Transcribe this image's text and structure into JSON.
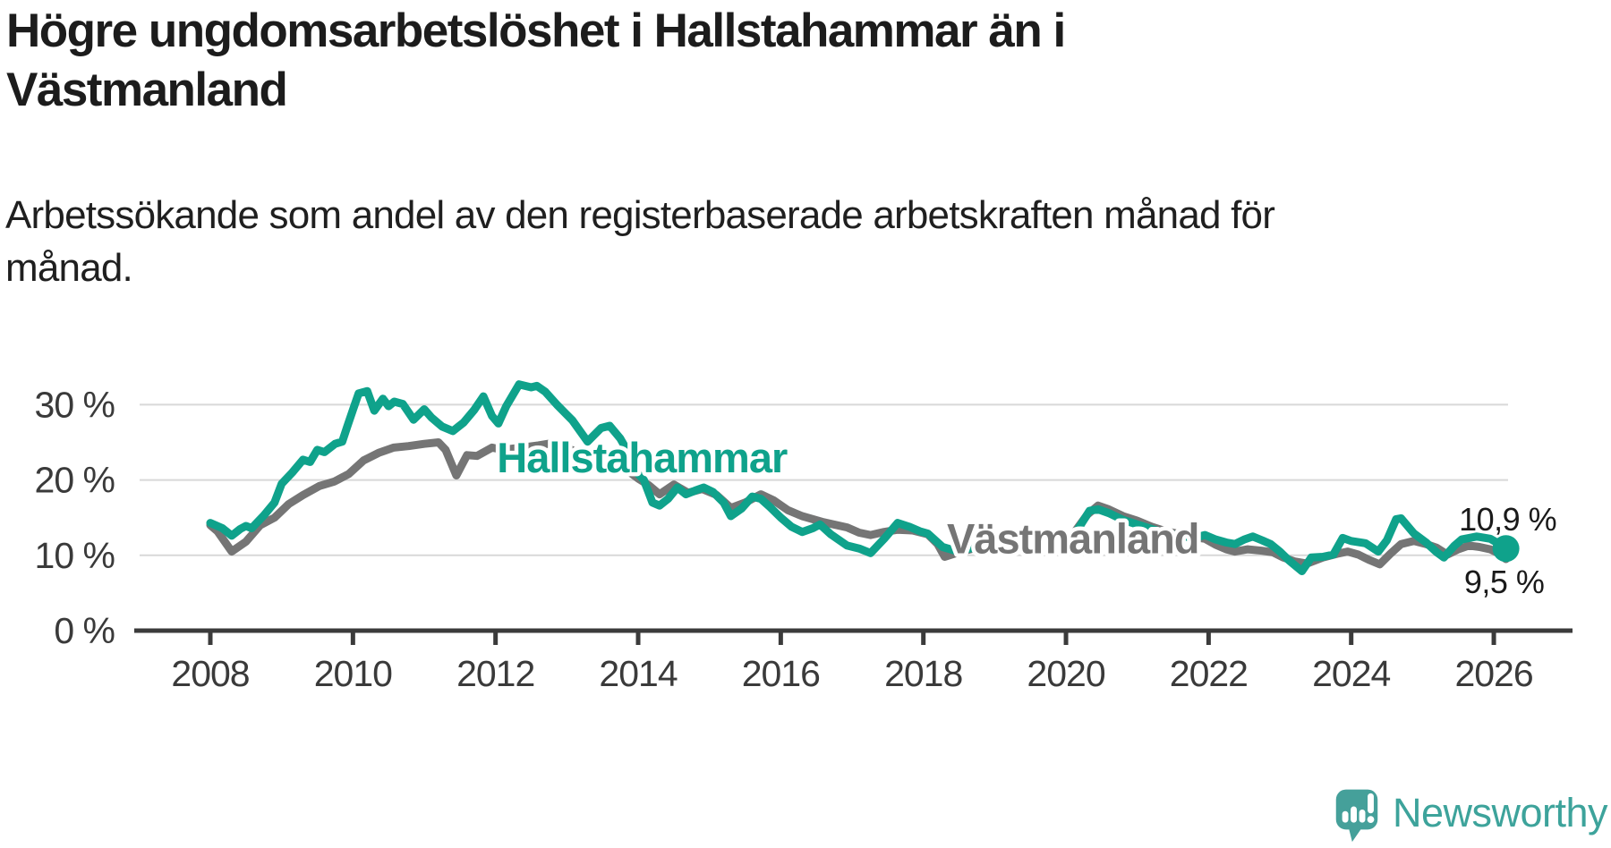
{
  "header": {
    "title": "Högre ungdomsarbetslöshet i Hallstahammar än i Västmanland",
    "subtitle": "Arbetssökande som andel av den registerbaserade arbetskraften månad för månad."
  },
  "branding": {
    "logo_text": "Newsworthy",
    "logo_icon": "newsworthy-speech-bubble-bar-chart-icon",
    "logo_color": "#45a09a"
  },
  "chart_data": {
    "type": "line",
    "unit": "%",
    "x_axis": {
      "min": 2008,
      "max": 2026.17,
      "ticks": [
        2008,
        2010,
        2012,
        2014,
        2016,
        2018,
        2020,
        2022,
        2024,
        2026
      ]
    },
    "y_axis": {
      "min": 0,
      "max": 34,
      "ticks": [
        0,
        10,
        20,
        30
      ],
      "tick_suffix": " %",
      "grid": true
    },
    "legend_position": "inline-labels",
    "series": [
      {
        "name": "Västmanland",
        "color": "#757575",
        "end_label": "9,5 %",
        "end_value": 9.5,
        "label_anchor": {
          "x": 2018.33,
          "y": 10.3
        },
        "points": [
          [
            2008.0,
            14.0
          ],
          [
            2008.1,
            13.2
          ],
          [
            2008.3,
            10.5
          ],
          [
            2008.5,
            11.8
          ],
          [
            2008.7,
            14.0
          ],
          [
            2008.9,
            15.0
          ],
          [
            2009.1,
            16.8
          ],
          [
            2009.3,
            18.0
          ],
          [
            2009.53,
            19.2
          ],
          [
            2009.74,
            19.8
          ],
          [
            2009.94,
            20.8
          ],
          [
            2010.15,
            22.6
          ],
          [
            2010.36,
            23.6
          ],
          [
            2010.57,
            24.3
          ],
          [
            2010.78,
            24.5
          ],
          [
            2011.0,
            24.8
          ],
          [
            2011.2,
            25.0
          ],
          [
            2011.3,
            24.0
          ],
          [
            2011.45,
            20.6
          ],
          [
            2011.6,
            23.3
          ],
          [
            2011.74,
            23.2
          ],
          [
            2011.95,
            24.3
          ],
          [
            2012.1,
            24.0
          ],
          [
            2012.37,
            24.3
          ],
          [
            2012.6,
            24.6
          ],
          [
            2012.8,
            24.9
          ],
          [
            2013.0,
            24.3
          ],
          [
            2013.2,
            23.4
          ],
          [
            2013.4,
            22.4
          ],
          [
            2013.6,
            22.8
          ],
          [
            2013.8,
            21.6
          ],
          [
            2014.0,
            20.2
          ],
          [
            2014.15,
            19.3
          ],
          [
            2014.3,
            18.1
          ],
          [
            2014.5,
            19.4
          ],
          [
            2014.7,
            18.3
          ],
          [
            2014.9,
            18.8
          ],
          [
            2015.1,
            18.0
          ],
          [
            2015.3,
            16.3
          ],
          [
            2015.5,
            17.0
          ],
          [
            2015.72,
            18.1
          ],
          [
            2015.9,
            17.3
          ],
          [
            2016.1,
            16.0
          ],
          [
            2016.3,
            15.2
          ],
          [
            2016.6,
            14.4
          ],
          [
            2016.93,
            13.7
          ],
          [
            2017.1,
            13.0
          ],
          [
            2017.26,
            12.7
          ],
          [
            2017.45,
            13.1
          ],
          [
            2017.64,
            13.4
          ],
          [
            2017.85,
            13.3
          ],
          [
            2018.06,
            12.8
          ],
          [
            2018.2,
            11.5
          ],
          [
            2018.3,
            9.8
          ],
          [
            2018.5,
            10.4
          ],
          [
            2018.7,
            10.9
          ],
          [
            2018.9,
            11.3
          ],
          [
            2019.1,
            11.5
          ],
          [
            2019.3,
            11.2
          ],
          [
            2019.5,
            11.0
          ],
          [
            2019.7,
            11.3
          ],
          [
            2019.9,
            11.8
          ],
          [
            2020.1,
            12.8
          ],
          [
            2020.3,
            15.4
          ],
          [
            2020.45,
            16.6
          ],
          [
            2020.6,
            16.1
          ],
          [
            2020.8,
            15.2
          ],
          [
            2021.0,
            14.6
          ],
          [
            2021.2,
            13.8
          ],
          [
            2021.4,
            13.2
          ],
          [
            2021.6,
            12.8
          ],
          [
            2021.8,
            12.4
          ],
          [
            2021.95,
            12.2
          ],
          [
            2022.1,
            11.4
          ],
          [
            2022.25,
            10.8
          ],
          [
            2022.37,
            10.5
          ],
          [
            2022.55,
            10.8
          ],
          [
            2022.75,
            10.6
          ],
          [
            2022.9,
            10.4
          ],
          [
            2023.05,
            9.7
          ],
          [
            2023.2,
            9.2
          ],
          [
            2023.38,
            8.9
          ],
          [
            2023.6,
            9.7
          ],
          [
            2023.8,
            10.2
          ],
          [
            2023.95,
            10.5
          ],
          [
            2024.1,
            10.1
          ],
          [
            2024.25,
            9.4
          ],
          [
            2024.4,
            8.8
          ],
          [
            2024.55,
            10.2
          ],
          [
            2024.7,
            11.5
          ],
          [
            2024.88,
            11.9
          ],
          [
            2025.05,
            11.5
          ],
          [
            2025.2,
            11.0
          ],
          [
            2025.35,
            10.1
          ],
          [
            2025.5,
            10.8
          ],
          [
            2025.65,
            11.3
          ],
          [
            2025.8,
            11.1
          ],
          [
            2025.95,
            10.8
          ],
          [
            2026.08,
            10.2
          ],
          [
            2026.17,
            9.5
          ]
        ]
      },
      {
        "name": "Hallstahammar",
        "color": "#0fa28b",
        "end_label": "10,9 %",
        "end_value": 10.9,
        "end_dot": true,
        "label_anchor": {
          "x": 2012.02,
          "y": 21.0
        },
        "points": [
          [
            2008.0,
            14.3
          ],
          [
            2008.17,
            13.6
          ],
          [
            2008.3,
            12.6
          ],
          [
            2008.42,
            13.5
          ],
          [
            2008.5,
            13.9
          ],
          [
            2008.58,
            13.6
          ],
          [
            2008.75,
            15.3
          ],
          [
            2008.9,
            17.0
          ],
          [
            2009.0,
            19.5
          ],
          [
            2009.15,
            21.0
          ],
          [
            2009.3,
            22.7
          ],
          [
            2009.4,
            22.4
          ],
          [
            2009.5,
            24.0
          ],
          [
            2009.6,
            23.7
          ],
          [
            2009.75,
            24.8
          ],
          [
            2009.85,
            25.1
          ],
          [
            2009.92,
            27.1
          ],
          [
            2010.0,
            29.3
          ],
          [
            2010.08,
            31.5
          ],
          [
            2010.2,
            31.8
          ],
          [
            2010.3,
            29.2
          ],
          [
            2010.42,
            30.8
          ],
          [
            2010.5,
            29.8
          ],
          [
            2010.58,
            30.4
          ],
          [
            2010.7,
            30.1
          ],
          [
            2010.85,
            28.0
          ],
          [
            2011.0,
            29.4
          ],
          [
            2011.1,
            28.3
          ],
          [
            2011.25,
            27.1
          ],
          [
            2011.4,
            26.5
          ],
          [
            2011.55,
            27.6
          ],
          [
            2011.7,
            29.3
          ],
          [
            2011.83,
            31.1
          ],
          [
            2011.95,
            28.5
          ],
          [
            2012.04,
            27.5
          ],
          [
            2012.15,
            29.8
          ],
          [
            2012.33,
            32.7
          ],
          [
            2012.5,
            32.3
          ],
          [
            2012.58,
            32.5
          ],
          [
            2012.7,
            31.7
          ],
          [
            2012.87,
            29.9
          ],
          [
            2013.08,
            27.9
          ],
          [
            2013.29,
            25.1
          ],
          [
            2013.48,
            26.9
          ],
          [
            2013.6,
            27.2
          ],
          [
            2013.75,
            25.5
          ],
          [
            2013.9,
            23.0
          ],
          [
            2014.0,
            20.8
          ],
          [
            2014.08,
            20.0
          ],
          [
            2014.2,
            17.0
          ],
          [
            2014.3,
            16.6
          ],
          [
            2014.42,
            17.5
          ],
          [
            2014.55,
            19.0
          ],
          [
            2014.67,
            18.1
          ],
          [
            2014.8,
            18.6
          ],
          [
            2014.92,
            19.0
          ],
          [
            2015.05,
            18.4
          ],
          [
            2015.2,
            17.0
          ],
          [
            2015.3,
            15.2
          ],
          [
            2015.45,
            16.2
          ],
          [
            2015.6,
            17.8
          ],
          [
            2015.72,
            17.5
          ],
          [
            2015.85,
            16.4
          ],
          [
            2016.0,
            15.0
          ],
          [
            2016.15,
            13.8
          ],
          [
            2016.3,
            13.1
          ],
          [
            2016.45,
            13.6
          ],
          [
            2016.55,
            14.1
          ],
          [
            2016.7,
            12.8
          ],
          [
            2016.93,
            11.3
          ],
          [
            2017.1,
            10.9
          ],
          [
            2017.26,
            10.3
          ],
          [
            2017.45,
            12.2
          ],
          [
            2017.64,
            14.3
          ],
          [
            2017.8,
            13.8
          ],
          [
            2017.95,
            13.2
          ],
          [
            2018.06,
            12.9
          ],
          [
            2018.27,
            11.1
          ],
          [
            2018.45,
            10.6
          ],
          [
            2018.65,
            10.9
          ],
          [
            2018.85,
            11.2
          ],
          [
            2019.0,
            11.4
          ],
          [
            2019.2,
            11.0
          ],
          [
            2019.4,
            10.7
          ],
          [
            2019.6,
            11.0
          ],
          [
            2019.8,
            11.5
          ],
          [
            2020.0,
            11.9
          ],
          [
            2020.15,
            13.2
          ],
          [
            2020.33,
            15.9
          ],
          [
            2020.45,
            16.1
          ],
          [
            2020.6,
            15.6
          ],
          [
            2020.8,
            14.7
          ],
          [
            2021.0,
            14.1
          ],
          [
            2021.2,
            13.5
          ],
          [
            2021.4,
            12.9
          ],
          [
            2021.6,
            12.6
          ],
          [
            2021.8,
            12.3
          ],
          [
            2021.95,
            12.7
          ],
          [
            2022.1,
            12.1
          ],
          [
            2022.25,
            11.7
          ],
          [
            2022.37,
            11.5
          ],
          [
            2022.5,
            12.1
          ],
          [
            2022.62,
            12.5
          ],
          [
            2022.75,
            12.0
          ],
          [
            2022.87,
            11.5
          ],
          [
            2023.0,
            10.5
          ],
          [
            2023.13,
            9.3
          ],
          [
            2023.31,
            7.9
          ],
          [
            2023.44,
            9.7
          ],
          [
            2023.6,
            9.8
          ],
          [
            2023.75,
            10.1
          ],
          [
            2023.88,
            12.3
          ],
          [
            2024.0,
            11.9
          ],
          [
            2024.2,
            11.6
          ],
          [
            2024.38,
            10.5
          ],
          [
            2024.5,
            12.0
          ],
          [
            2024.63,
            14.8
          ],
          [
            2024.7,
            14.9
          ],
          [
            2024.88,
            12.9
          ],
          [
            2025.05,
            11.7
          ],
          [
            2025.2,
            10.4
          ],
          [
            2025.3,
            9.7
          ],
          [
            2025.45,
            11.3
          ],
          [
            2025.55,
            12.1
          ],
          [
            2025.76,
            12.5
          ],
          [
            2025.95,
            12.2
          ],
          [
            2026.08,
            11.5
          ],
          [
            2026.17,
            10.9
          ]
        ]
      }
    ]
  }
}
